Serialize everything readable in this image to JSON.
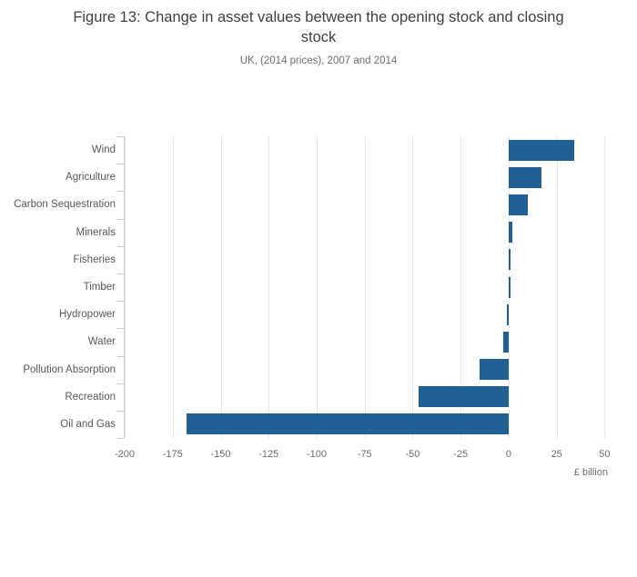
{
  "figure": {
    "title": "Figure 13: Change in asset values between the opening stock and closing\nstock",
    "subtitle": "UK, (2014 prices), 2007 and 2014"
  },
  "chart_data": {
    "type": "bar",
    "orientation": "horizontal",
    "title": "Figure 13: Change in asset values between the opening stock and closing stock",
    "subtitle": "UK, (2014 prices), 2007 and 2014",
    "categories": [
      "Wind",
      "Agriculture",
      "Carbon Sequestration",
      "Minerals",
      "Fisheries",
      "Timber",
      "Hydropower",
      "Water",
      "Pollution Absorption",
      "Recreation",
      "Oil and Gas"
    ],
    "values": [
      34,
      17,
      10,
      2,
      1,
      1,
      -1,
      -3,
      -15,
      -47,
      -168
    ],
    "xlabel": "£ billion",
    "ylabel": "",
    "xlim": [
      -200,
      53.6
    ],
    "x_ticks": [
      -200,
      -175,
      -150,
      -125,
      -100,
      -75,
      -50,
      -25,
      0,
      25,
      50
    ],
    "x_tick_labels": [
      "-200",
      "-175",
      "-150",
      "-125",
      "-100",
      "-75",
      "-50",
      "-25",
      "0",
      "25",
      "50"
    ],
    "grid": true,
    "legend": "none",
    "colors": {
      "bar": "#206095",
      "gridline": "#e8e8e8",
      "axis_line": "#c7ccd4",
      "tick_label": "#6d6e71",
      "category_label": "#595959",
      "title": "#414042",
      "subtitle": "#6d6e71"
    }
  }
}
